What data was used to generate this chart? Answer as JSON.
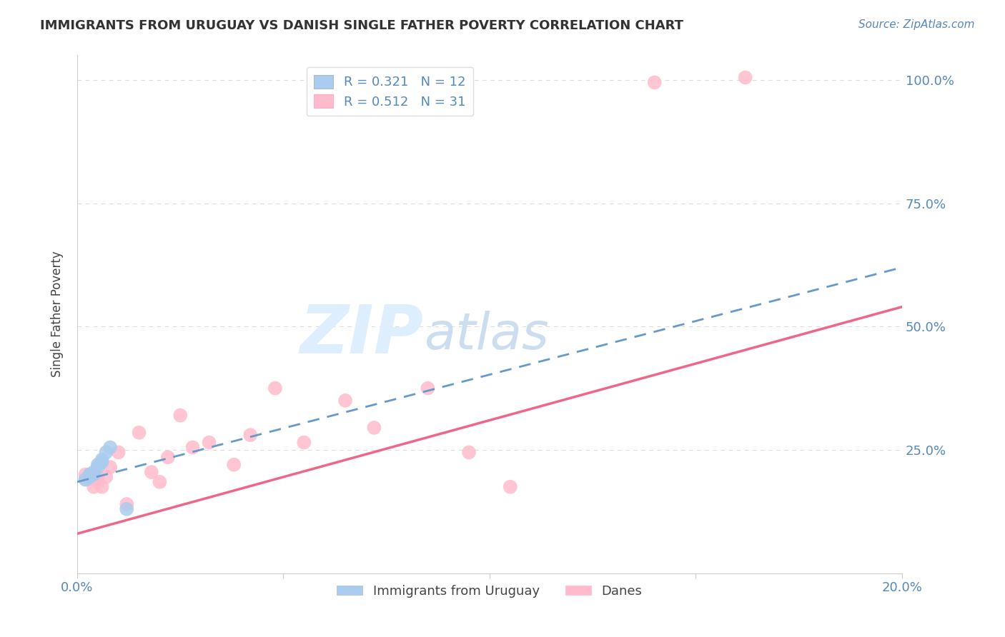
{
  "title": "IMMIGRANTS FROM URUGUAY VS DANISH SINGLE FATHER POVERTY CORRELATION CHART",
  "source": "Source: ZipAtlas.com",
  "ylabel": "Single Father Poverty",
  "x_min": 0.0,
  "x_max": 0.2,
  "y_min": 0.0,
  "y_max": 1.05,
  "x_ticks": [
    0.0,
    0.05,
    0.1,
    0.15,
    0.2
  ],
  "x_tick_labels": [
    "0.0%",
    "",
    "",
    "",
    "20.0%"
  ],
  "y_ticks": [
    0.0,
    0.25,
    0.5,
    0.75,
    1.0
  ],
  "y_tick_right_labels": [
    "",
    "25.0%",
    "50.0%",
    "75.0%",
    "100.0%"
  ],
  "blue_scatter_x": [
    0.002,
    0.003,
    0.003,
    0.004,
    0.004,
    0.005,
    0.005,
    0.006,
    0.006,
    0.007,
    0.008,
    0.012
  ],
  "blue_scatter_y": [
    0.19,
    0.195,
    0.2,
    0.2,
    0.205,
    0.215,
    0.22,
    0.225,
    0.23,
    0.245,
    0.255,
    0.13
  ],
  "pink_scatter_x": [
    0.002,
    0.002,
    0.003,
    0.003,
    0.004,
    0.004,
    0.005,
    0.005,
    0.006,
    0.007,
    0.008,
    0.01,
    0.012,
    0.015,
    0.018,
    0.02,
    0.022,
    0.025,
    0.028,
    0.032,
    0.038,
    0.042,
    0.048,
    0.055,
    0.065,
    0.072,
    0.085,
    0.095,
    0.105,
    0.14,
    0.162
  ],
  "pink_scatter_y": [
    0.19,
    0.2,
    0.19,
    0.2,
    0.175,
    0.195,
    0.185,
    0.195,
    0.175,
    0.195,
    0.215,
    0.245,
    0.14,
    0.285,
    0.205,
    0.185,
    0.235,
    0.32,
    0.255,
    0.265,
    0.22,
    0.28,
    0.375,
    0.265,
    0.35,
    0.295,
    0.375,
    0.245,
    0.175,
    0.995,
    1.005
  ],
  "blue_line_x": [
    0.0,
    0.2
  ],
  "blue_line_y": [
    0.185,
    0.62
  ],
  "pink_line_x": [
    0.0,
    0.2
  ],
  "pink_line_y": [
    0.08,
    0.54
  ],
  "legend_r_blue": "R = 0.321",
  "legend_n_blue": "N = 12",
  "legend_r_pink": "R = 0.512",
  "legend_n_pink": "N = 31",
  "blue_color": "#6699CC",
  "pink_color": "#EE6688",
  "blue_scatter_color": "#AACCEE",
  "pink_scatter_color": "#FFBBCC",
  "grid_color": "#CCCCCC",
  "title_color": "#333333",
  "axis_label_color": "#444444",
  "tick_color": "#5588BB",
  "watermark_zip_color": "#DDEEFF",
  "watermark_atlas_color": "#CCDDEE",
  "background_color": "#FFFFFF"
}
